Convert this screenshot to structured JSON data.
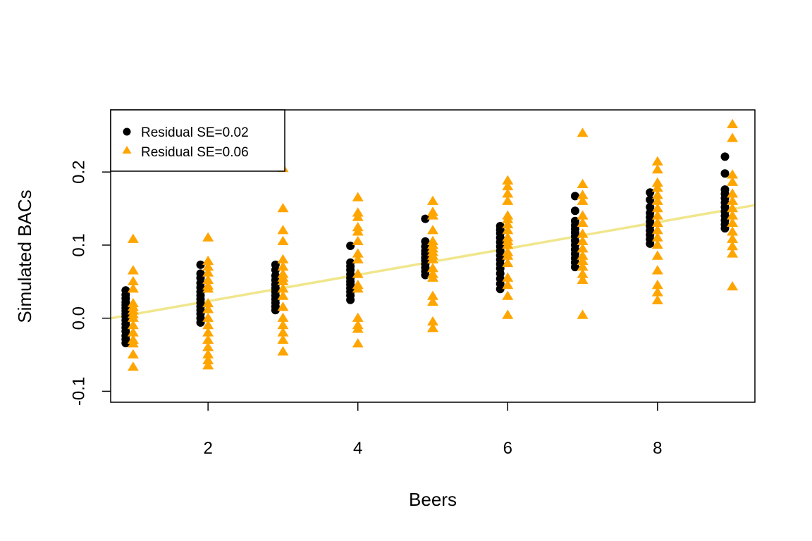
{
  "chart_data": {
    "type": "scatter",
    "xlabel": "Beers",
    "ylabel": "Simulated BACs",
    "xlim": [
      0.7,
      9.3
    ],
    "ylim": [
      -0.115,
      0.285
    ],
    "x_ticks": [
      2,
      4,
      6,
      8
    ],
    "x_tick_labels": [
      "2",
      "4",
      "6",
      "8"
    ],
    "y_ticks": [
      -0.1,
      0.0,
      0.1,
      0.2
    ],
    "y_tick_labels": [
      "-0.1",
      "0.0",
      "0.1",
      "0.2"
    ],
    "grid": false,
    "legend_position": "top-left",
    "fit_line": {
      "intercept": -0.0127,
      "slope": 0.018,
      "color": "#F0E68C"
    },
    "series": [
      {
        "name": "Residual SE=0.02",
        "marker": "circle",
        "color": "#000000",
        "x_offset": -0.1,
        "points": [
          [
            1,
            0.038
          ],
          [
            1,
            0.032
          ],
          [
            1,
            0.027
          ],
          [
            1,
            0.022
          ],
          [
            1,
            0.018
          ],
          [
            1,
            0.014
          ],
          [
            1,
            0.01
          ],
          [
            1,
            0.006
          ],
          [
            1,
            0.002
          ],
          [
            1,
            -0.003
          ],
          [
            1,
            -0.008
          ],
          [
            1,
            -0.013
          ],
          [
            1,
            -0.018
          ],
          [
            1,
            -0.024
          ],
          [
            1,
            -0.029
          ],
          [
            1,
            -0.034
          ],
          [
            2,
            0.073
          ],
          [
            2,
            0.061
          ],
          [
            2,
            0.055
          ],
          [
            2,
            0.048
          ],
          [
            2,
            0.042
          ],
          [
            2,
            0.036
          ],
          [
            2,
            0.031
          ],
          [
            2,
            0.026
          ],
          [
            2,
            0.021
          ],
          [
            2,
            0.016
          ],
          [
            2,
            0.011
          ],
          [
            2,
            0.006
          ],
          [
            2,
            0.0
          ],
          [
            2,
            -0.006
          ],
          [
            3,
            0.073
          ],
          [
            3,
            0.066
          ],
          [
            3,
            0.058
          ],
          [
            3,
            0.052
          ],
          [
            3,
            0.046
          ],
          [
            3,
            0.041
          ],
          [
            3,
            0.036
          ],
          [
            3,
            0.031
          ],
          [
            3,
            0.026
          ],
          [
            3,
            0.021
          ],
          [
            3,
            0.016
          ],
          [
            3,
            0.011
          ],
          [
            4,
            0.099
          ],
          [
            4,
            0.076
          ],
          [
            4,
            0.071
          ],
          [
            4,
            0.066
          ],
          [
            4,
            0.06
          ],
          [
            4,
            0.055
          ],
          [
            4,
            0.05
          ],
          [
            4,
            0.046
          ],
          [
            4,
            0.041
          ],
          [
            4,
            0.036
          ],
          [
            4,
            0.031
          ],
          [
            4,
            0.025
          ],
          [
            5,
            0.136
          ],
          [
            5,
            0.105
          ],
          [
            5,
            0.098
          ],
          [
            5,
            0.092
          ],
          [
            5,
            0.088
          ],
          [
            5,
            0.083
          ],
          [
            5,
            0.079
          ],
          [
            5,
            0.074
          ],
          [
            5,
            0.069
          ],
          [
            5,
            0.064
          ],
          [
            5,
            0.059
          ],
          [
            6,
            0.126
          ],
          [
            6,
            0.121
          ],
          [
            6,
            0.116
          ],
          [
            6,
            0.11
          ],
          [
            6,
            0.104
          ],
          [
            6,
            0.098
          ],
          [
            6,
            0.092
          ],
          [
            6,
            0.086
          ],
          [
            6,
            0.08
          ],
          [
            6,
            0.074
          ],
          [
            6,
            0.068
          ],
          [
            6,
            0.061
          ],
          [
            6,
            0.054
          ],
          [
            6,
            0.047
          ],
          [
            6,
            0.04
          ],
          [
            7,
            0.167
          ],
          [
            7,
            0.147
          ],
          [
            7,
            0.133
          ],
          [
            7,
            0.127
          ],
          [
            7,
            0.122
          ],
          [
            7,
            0.117
          ],
          [
            7,
            0.112
          ],
          [
            7,
            0.106
          ],
          [
            7,
            0.1
          ],
          [
            7,
            0.094
          ],
          [
            7,
            0.088
          ],
          [
            7,
            0.082
          ],
          [
            7,
            0.076
          ],
          [
            7,
            0.07
          ],
          [
            8,
            0.172
          ],
          [
            8,
            0.162
          ],
          [
            8,
            0.152
          ],
          [
            8,
            0.144
          ],
          [
            8,
            0.138
          ],
          [
            8,
            0.132
          ],
          [
            8,
            0.126
          ],
          [
            8,
            0.12
          ],
          [
            8,
            0.114
          ],
          [
            8,
            0.108
          ],
          [
            8,
            0.102
          ],
          [
            9,
            0.221
          ],
          [
            9,
            0.198
          ],
          [
            9,
            0.176
          ],
          [
            9,
            0.17
          ],
          [
            9,
            0.164
          ],
          [
            9,
            0.158
          ],
          [
            9,
            0.152
          ],
          [
            9,
            0.146
          ],
          [
            9,
            0.14
          ],
          [
            9,
            0.134
          ],
          [
            9,
            0.128
          ],
          [
            9,
            0.123
          ]
        ]
      },
      {
        "name": "Residual SE=0.06",
        "marker": "triangle",
        "color": "#FFA500",
        "x_offset": 0.0,
        "points": [
          [
            1,
            0.108
          ],
          [
            1,
            0.065
          ],
          [
            1,
            0.05
          ],
          [
            1,
            0.04
          ],
          [
            1,
            0.02
          ],
          [
            1,
            0.015
          ],
          [
            1,
            0.01
          ],
          [
            1,
            0.005
          ],
          [
            1,
            0.0
          ],
          [
            1,
            -0.01
          ],
          [
            1,
            -0.02
          ],
          [
            1,
            -0.03
          ],
          [
            1,
            -0.035
          ],
          [
            1,
            -0.05
          ],
          [
            1,
            -0.067
          ],
          [
            2,
            0.11
          ],
          [
            2,
            0.078
          ],
          [
            2,
            0.07
          ],
          [
            2,
            0.062
          ],
          [
            2,
            0.052
          ],
          [
            2,
            0.044
          ],
          [
            2,
            0.04
          ],
          [
            2,
            0.02
          ],
          [
            2,
            0.012
          ],
          [
            2,
            0.0
          ],
          [
            2,
            -0.01
          ],
          [
            2,
            -0.02
          ],
          [
            2,
            -0.03
          ],
          [
            2,
            -0.04
          ],
          [
            2,
            -0.05
          ],
          [
            2,
            -0.058
          ],
          [
            2,
            -0.065
          ],
          [
            3,
            0.205
          ],
          [
            3,
            0.15
          ],
          [
            3,
            0.12
          ],
          [
            3,
            0.105
          ],
          [
            3,
            0.08
          ],
          [
            3,
            0.07
          ],
          [
            3,
            0.06
          ],
          [
            3,
            0.055
          ],
          [
            3,
            0.05
          ],
          [
            3,
            0.04
          ],
          [
            3,
            0.03
          ],
          [
            3,
            0.015
          ],
          [
            3,
            0.0
          ],
          [
            3,
            -0.01
          ],
          [
            3,
            -0.02
          ],
          [
            3,
            -0.03
          ],
          [
            3,
            -0.046
          ],
          [
            4,
            0.165
          ],
          [
            4,
            0.144
          ],
          [
            4,
            0.138
          ],
          [
            4,
            0.124
          ],
          [
            4,
            0.118
          ],
          [
            4,
            0.105
          ],
          [
            4,
            0.088
          ],
          [
            4,
            0.08
          ],
          [
            4,
            0.06
          ],
          [
            4,
            0.045
          ],
          [
            4,
            0.04
          ],
          [
            4,
            0.0
          ],
          [
            4,
            -0.01
          ],
          [
            4,
            -0.015
          ],
          [
            4,
            -0.035
          ],
          [
            5,
            0.16
          ],
          [
            5,
            0.145
          ],
          [
            5,
            0.14
          ],
          [
            5,
            0.12
          ],
          [
            5,
            0.105
          ],
          [
            5,
            0.1
          ],
          [
            5,
            0.095
          ],
          [
            5,
            0.09
          ],
          [
            5,
            0.085
          ],
          [
            5,
            0.08
          ],
          [
            5,
            0.068
          ],
          [
            5,
            0.06
          ],
          [
            5,
            0.055
          ],
          [
            5,
            0.03
          ],
          [
            5,
            0.022
          ],
          [
            5,
            -0.005
          ],
          [
            5,
            -0.014
          ],
          [
            6,
            0.188
          ],
          [
            6,
            0.18
          ],
          [
            6,
            0.17
          ],
          [
            6,
            0.16
          ],
          [
            6,
            0.14
          ],
          [
            6,
            0.135
          ],
          [
            6,
            0.128
          ],
          [
            6,
            0.12
          ],
          [
            6,
            0.11
          ],
          [
            6,
            0.105
          ],
          [
            6,
            0.1
          ],
          [
            6,
            0.09
          ],
          [
            6,
            0.085
          ],
          [
            6,
            0.075
          ],
          [
            6,
            0.055
          ],
          [
            6,
            0.045
          ],
          [
            6,
            0.03
          ],
          [
            6,
            0.004
          ],
          [
            7,
            0.253
          ],
          [
            7,
            0.183
          ],
          [
            7,
            0.168
          ],
          [
            7,
            0.16
          ],
          [
            7,
            0.14
          ],
          [
            7,
            0.13
          ],
          [
            7,
            0.115
          ],
          [
            7,
            0.105
          ],
          [
            7,
            0.095
          ],
          [
            7,
            0.085
          ],
          [
            7,
            0.078
          ],
          [
            7,
            0.07
          ],
          [
            7,
            0.06
          ],
          [
            7,
            0.052
          ],
          [
            7,
            0.004
          ],
          [
            8,
            0.214
          ],
          [
            8,
            0.203
          ],
          [
            8,
            0.185
          ],
          [
            8,
            0.178
          ],
          [
            8,
            0.168
          ],
          [
            8,
            0.16
          ],
          [
            8,
            0.15
          ],
          [
            8,
            0.14
          ],
          [
            8,
            0.13
          ],
          [
            8,
            0.12
          ],
          [
            8,
            0.11
          ],
          [
            8,
            0.1
          ],
          [
            8,
            0.085
          ],
          [
            8,
            0.065
          ],
          [
            8,
            0.045
          ],
          [
            8,
            0.035
          ],
          [
            8,
            0.024
          ],
          [
            9,
            0.265
          ],
          [
            9,
            0.246
          ],
          [
            9,
            0.196
          ],
          [
            9,
            0.186
          ],
          [
            9,
            0.17
          ],
          [
            9,
            0.16
          ],
          [
            9,
            0.15
          ],
          [
            9,
            0.14
          ],
          [
            9,
            0.13
          ],
          [
            9,
            0.118
          ],
          [
            9,
            0.108
          ],
          [
            9,
            0.098
          ],
          [
            9,
            0.088
          ],
          [
            9,
            0.043
          ]
        ]
      }
    ]
  }
}
